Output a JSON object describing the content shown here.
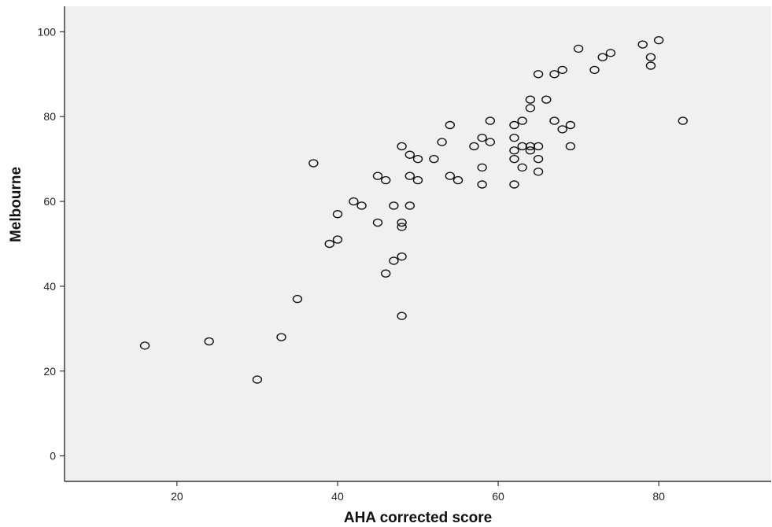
{
  "chart_data": {
    "type": "scatter",
    "title": "",
    "xlabel": "AHA corrected score",
    "ylabel": "Melbourne",
    "xlim": [
      6,
      94
    ],
    "ylim": [
      -6,
      106
    ],
    "xticks": [
      20,
      40,
      60,
      80
    ],
    "yticks": [
      0,
      20,
      40,
      60,
      80,
      100
    ],
    "x_tick_labels": [
      "20",
      "40",
      "60",
      "80"
    ],
    "y_tick_labels": [
      "0",
      "20",
      "40",
      "60",
      "80",
      "100"
    ],
    "grid": false,
    "legend": "none",
    "plot_background": "#f0f0f0",
    "marker": "open-circle",
    "points": [
      [
        16,
        26
      ],
      [
        24,
        27
      ],
      [
        30,
        18
      ],
      [
        33,
        28
      ],
      [
        35,
        37
      ],
      [
        37,
        69
      ],
      [
        39,
        50
      ],
      [
        40,
        51
      ],
      [
        40,
        57
      ],
      [
        42,
        60
      ],
      [
        43,
        59
      ],
      [
        45,
        66
      ],
      [
        45,
        55
      ],
      [
        46,
        65
      ],
      [
        46,
        43
      ],
      [
        47,
        59
      ],
      [
        47,
        46
      ],
      [
        48,
        73
      ],
      [
        48,
        55
      ],
      [
        48,
        54
      ],
      [
        48,
        47
      ],
      [
        48,
        33
      ],
      [
        49,
        71
      ],
      [
        49,
        66
      ],
      [
        49,
        59
      ],
      [
        50,
        70
      ],
      [
        50,
        65
      ],
      [
        52,
        70
      ],
      [
        53,
        74
      ],
      [
        54,
        78
      ],
      [
        54,
        66
      ],
      [
        55,
        65
      ],
      [
        57,
        73
      ],
      [
        58,
        75
      ],
      [
        58,
        68
      ],
      [
        58,
        64
      ],
      [
        59,
        79
      ],
      [
        59,
        74
      ],
      [
        62,
        78
      ],
      [
        62,
        75
      ],
      [
        62,
        72
      ],
      [
        62,
        70
      ],
      [
        62,
        64
      ],
      [
        63,
        79
      ],
      [
        63,
        73
      ],
      [
        63,
        68
      ],
      [
        64,
        84
      ],
      [
        64,
        82
      ],
      [
        64,
        73
      ],
      [
        64,
        72
      ],
      [
        65,
        90
      ],
      [
        65,
        73
      ],
      [
        65,
        70
      ],
      [
        65,
        67
      ],
      [
        66,
        84
      ],
      [
        67,
        90
      ],
      [
        67,
        79
      ],
      [
        68,
        91
      ],
      [
        68,
        77
      ],
      [
        69,
        78
      ],
      [
        69,
        73
      ],
      [
        70,
        96
      ],
      [
        72,
        91
      ],
      [
        73,
        94
      ],
      [
        74,
        95
      ],
      [
        78,
        97
      ],
      [
        79,
        94
      ],
      [
        79,
        92
      ],
      [
        80,
        98
      ],
      [
        83,
        79
      ]
    ]
  }
}
